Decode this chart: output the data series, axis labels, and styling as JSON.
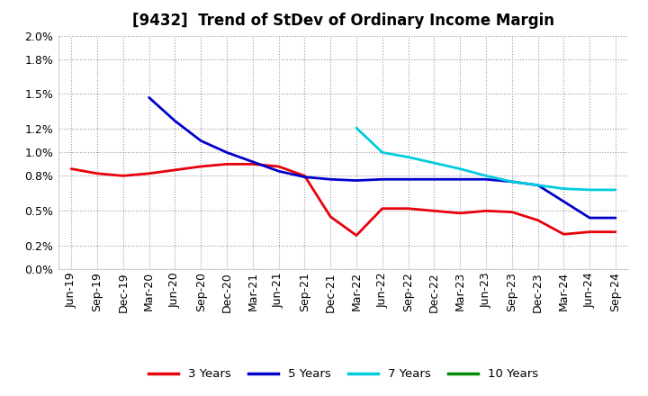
{
  "title": "[9432]  Trend of StDev of Ordinary Income Margin",
  "x_labels": [
    "Jun-19",
    "Sep-19",
    "Dec-19",
    "Mar-20",
    "Jun-20",
    "Sep-20",
    "Dec-20",
    "Mar-21",
    "Jun-21",
    "Sep-21",
    "Dec-21",
    "Mar-22",
    "Jun-22",
    "Sep-22",
    "Dec-22",
    "Mar-23",
    "Jun-23",
    "Sep-23",
    "Dec-23",
    "Mar-24",
    "Jun-24",
    "Sep-24"
  ],
  "ylim": [
    0.0,
    0.02
  ],
  "yticks": [
    0.0,
    0.002,
    0.005,
    0.008,
    0.01,
    0.012,
    0.015,
    0.018,
    0.02
  ],
  "ytick_labels": [
    "0.0%",
    "0.2%",
    "0.5%",
    "0.8%",
    "1.0%",
    "1.2%",
    "1.5%",
    "1.8%",
    "2.0%"
  ],
  "series_3y_x": [
    0,
    1,
    2,
    3,
    4,
    5,
    6,
    7,
    8,
    9,
    10,
    11,
    12,
    13,
    14,
    15,
    16,
    17,
    18,
    19,
    20,
    21
  ],
  "series_3y_y": [
    0.0086,
    0.0082,
    0.008,
    0.0082,
    0.0085,
    0.0088,
    0.009,
    0.009,
    0.0088,
    0.008,
    0.0045,
    0.0029,
    0.0052,
    0.0052,
    0.005,
    0.0048,
    0.005,
    0.0049,
    0.0042,
    0.003,
    0.0032,
    0.0032
  ],
  "series_5y_x": [
    3,
    4,
    5,
    6,
    7,
    8,
    9,
    10,
    11,
    12,
    13,
    14,
    15,
    16,
    17,
    18,
    19,
    20,
    21
  ],
  "series_5y_y": [
    0.0147,
    0.0127,
    0.011,
    0.01,
    0.0092,
    0.0084,
    0.0079,
    0.0077,
    0.0076,
    0.0077,
    0.0077,
    0.0077,
    0.0077,
    0.0077,
    0.0075,
    0.0072,
    0.0058,
    0.0044,
    0.0044
  ],
  "series_7y_x": [
    11,
    12,
    13,
    14,
    15,
    16,
    17,
    18,
    19,
    20,
    21
  ],
  "series_7y_y": [
    0.0121,
    0.01,
    0.0096,
    0.0091,
    0.0086,
    0.008,
    0.0075,
    0.0072,
    0.0069,
    0.0068,
    0.0068
  ],
  "series_10y_x": [],
  "series_10y_y": [],
  "color_3y": "#e8000a",
  "color_5y": "#0000cc",
  "color_7y": "#00ccdd",
  "color_10y": "#008800",
  "linewidth": 2.0,
  "legend_labels": [
    "3 Years",
    "5 Years",
    "7 Years",
    "10 Years"
  ],
  "legend_colors": [
    "#e8000a",
    "#0000cc",
    "#00ccdd",
    "#008800"
  ],
  "background_color": "#ffffff",
  "plot_bg_color": "#f0f0f0",
  "grid_color": "#999999",
  "title_fontsize": 12,
  "tick_fontsize": 9
}
